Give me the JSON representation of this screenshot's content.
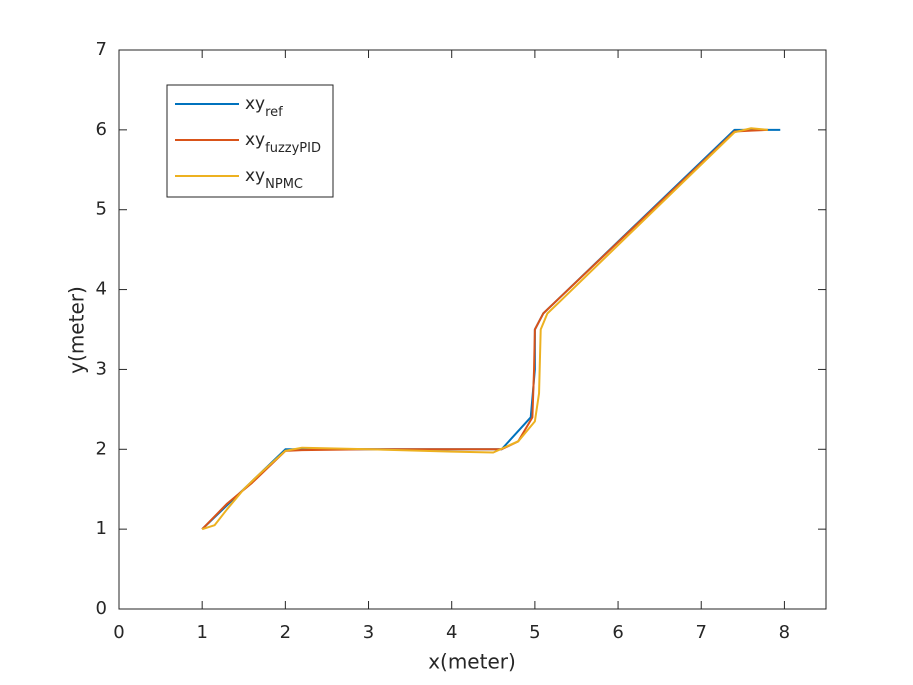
{
  "chart_data": {
    "type": "line",
    "x_label": "x(meter)",
    "y_label": "y(meter)",
    "xlim": [
      0,
      8.5
    ],
    "xticks": [
      0,
      1,
      2,
      3,
      4,
      5,
      6,
      7,
      8
    ],
    "ylim": [
      0,
      7
    ],
    "yticks": [
      0,
      1,
      2,
      3,
      4,
      5,
      6,
      7
    ],
    "grid": false,
    "legend": "top-left",
    "series": [
      {
        "name": "xy",
        "name_subscript": "ref",
        "color": "#0072BD",
        "x": [
          1,
          1.6,
          2,
          4.6,
          4.95,
          5.0,
          5.0,
          5.1,
          5.3,
          7.4,
          7.95
        ],
        "y": [
          1,
          1.6,
          2,
          2,
          2.4,
          3.0,
          3.5,
          3.7,
          3.9,
          6,
          6
        ]
      },
      {
        "name": "xy",
        "name_subscript": "fuzzyPID",
        "color": "#D95319",
        "x": [
          1,
          1.3,
          1.6,
          2,
          2.2,
          3,
          4.6,
          4.8,
          4.97,
          4.99,
          5.0,
          5.1,
          5.3,
          7.4,
          7.6,
          7.8
        ],
        "y": [
          1,
          1.32,
          1.58,
          1.98,
          1.99,
          2,
          2,
          2.1,
          2.4,
          3.0,
          3.5,
          3.7,
          3.9,
          5.98,
          5.99,
          6
        ]
      },
      {
        "name": "xy",
        "name_subscript": "NPMC",
        "color": "#EDB120",
        "x": [
          1,
          1.15,
          1.3,
          1.5,
          1.7,
          2,
          2.2,
          3,
          4,
          4.5,
          4.8,
          5.0,
          5.05,
          5.07,
          5.15,
          5.3,
          7.4,
          7.6,
          7.8
        ],
        "y": [
          1,
          1.05,
          1.25,
          1.5,
          1.7,
          1.98,
          2.02,
          2,
          1.97,
          1.96,
          2.1,
          2.35,
          2.7,
          3.5,
          3.7,
          3.85,
          5.97,
          6.02,
          6
        ]
      }
    ]
  }
}
